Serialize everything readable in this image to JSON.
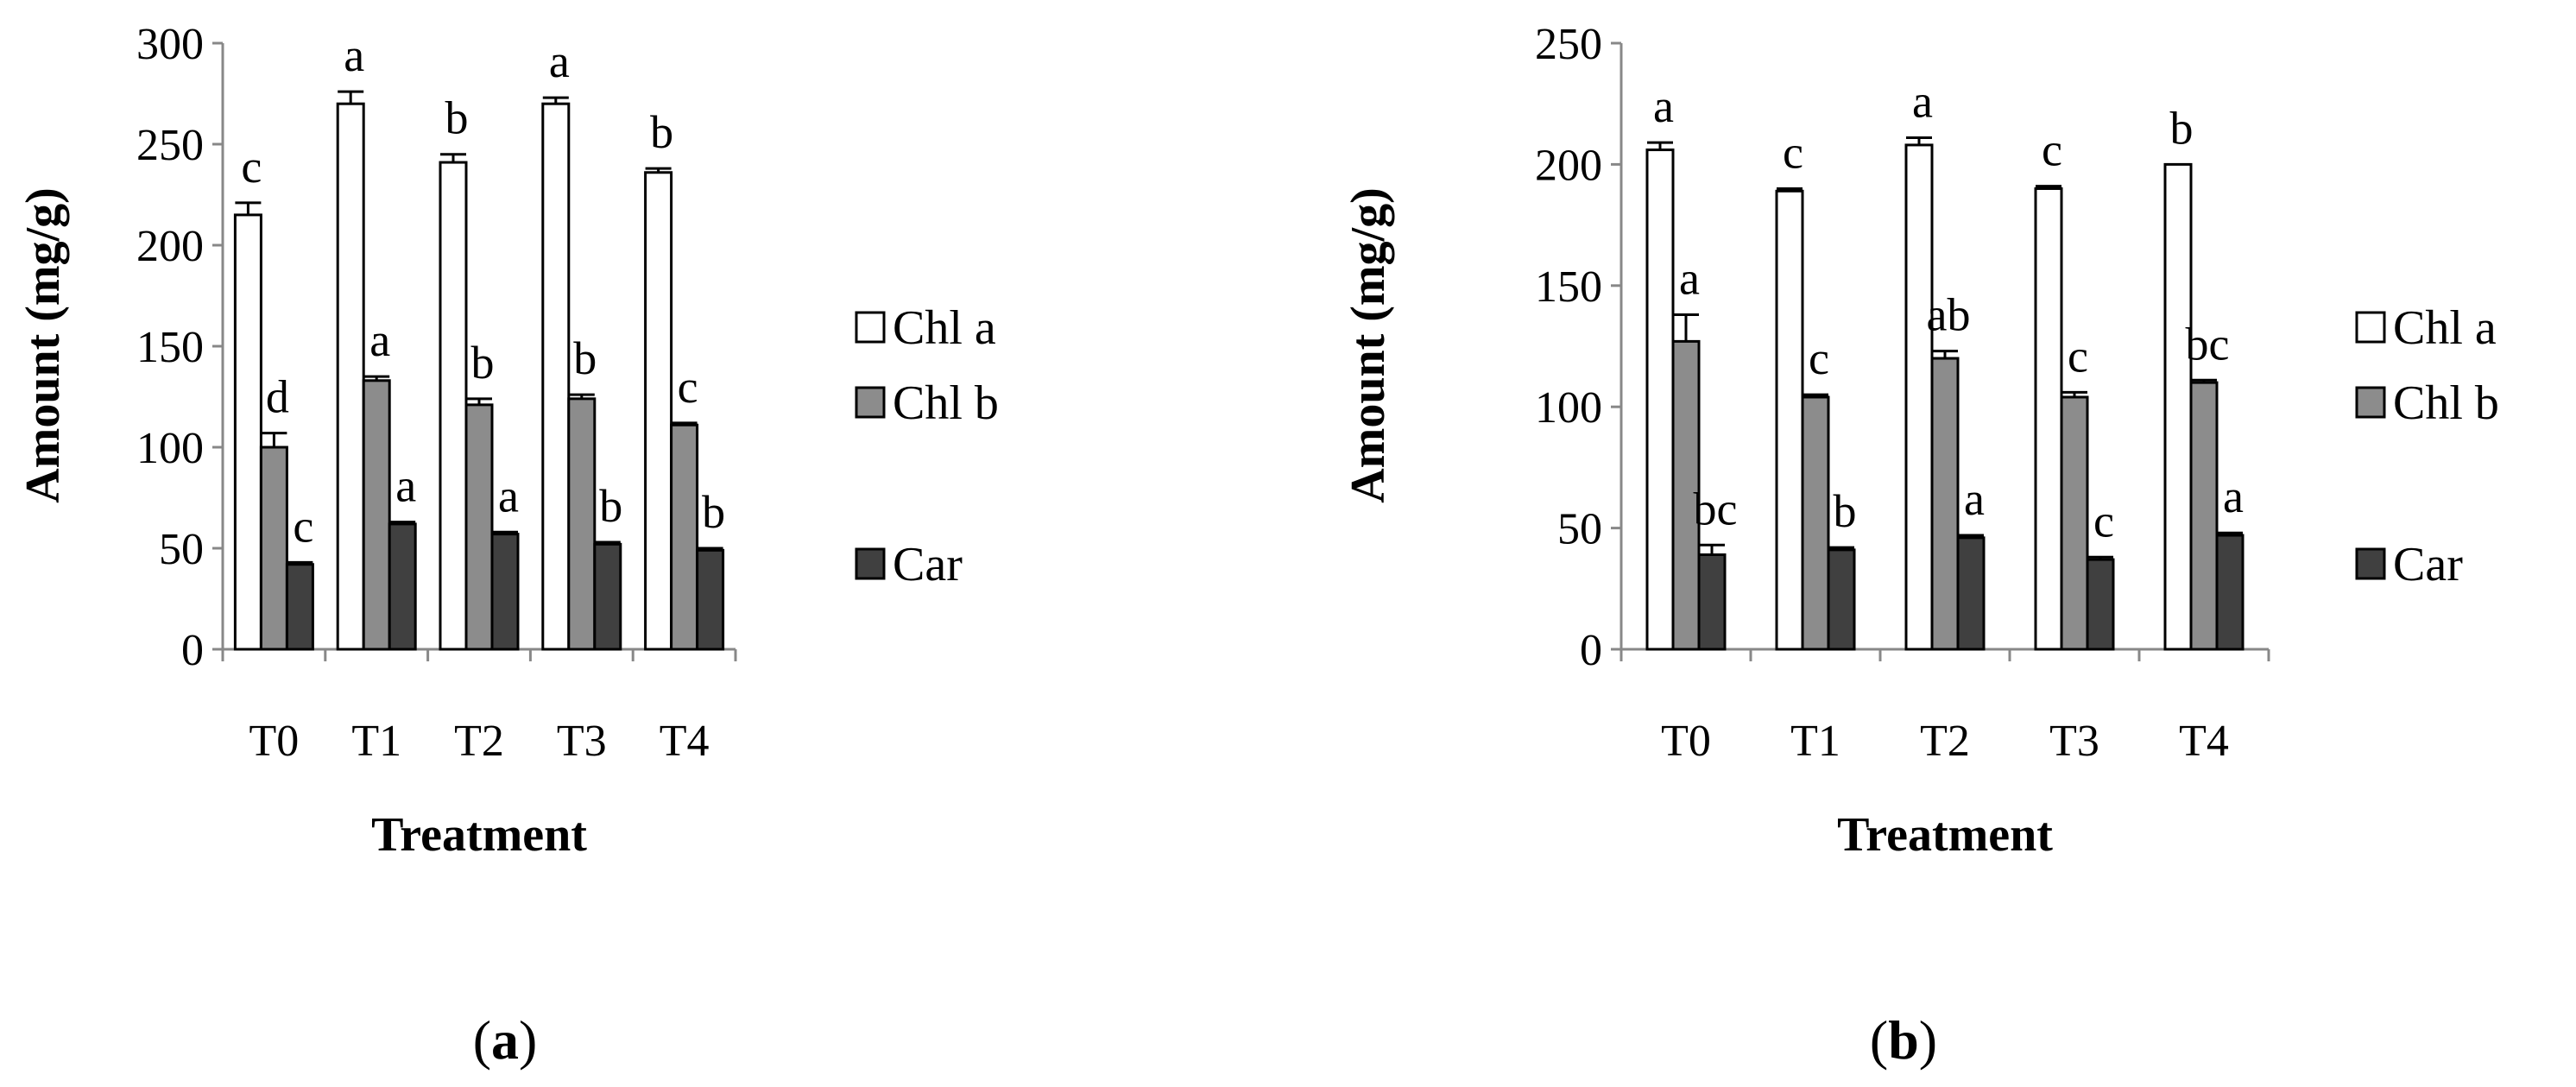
{
  "figure": {
    "panels": [
      {
        "label_open": "(",
        "label_letter": "a",
        "label_close": ")"
      },
      {
        "label_open": "(",
        "label_letter": "b",
        "label_close": ")"
      }
    ]
  },
  "chart_data": [
    {
      "type": "bar",
      "title": "",
      "xlabel": "Treatment",
      "ylabel": "Amount (mg/g)",
      "categories": [
        "T0",
        "T1",
        "T2",
        "T3",
        "T4"
      ],
      "ylim": [
        0,
        300
      ],
      "yticks": [
        0,
        50,
        100,
        150,
        200,
        250,
        300
      ],
      "grid": false,
      "legend_position": "right",
      "series": [
        {
          "name": "Chl a",
          "color": "#ffffff",
          "values": [
            215,
            270,
            241,
            270,
            236
          ],
          "errors": [
            6,
            6,
            4,
            3,
            2
          ],
          "labels": [
            "c",
            "a",
            "b",
            "a",
            "b"
          ]
        },
        {
          "name": "Chl b",
          "color": "#8c8c8c",
          "values": [
            100,
            133,
            121,
            124,
            111
          ],
          "errors": [
            7,
            2,
            3,
            2,
            1
          ],
          "labels": [
            "d",
            "a",
            "b",
            "b",
            "c"
          ]
        },
        {
          "name": "Car",
          "color": "#404040",
          "values": [
            42,
            62,
            57,
            52,
            49
          ],
          "errors": [
            1,
            1,
            1,
            1,
            1
          ],
          "labels": [
            "c",
            "a",
            "a",
            "b",
            "b"
          ]
        }
      ]
    },
    {
      "type": "bar",
      "title": "",
      "xlabel": "Treatment",
      "ylabel": "Amount (mg/g)",
      "categories": [
        "T0",
        "T1",
        "T2",
        "T3",
        "T4"
      ],
      "ylim": [
        0,
        250
      ],
      "yticks": [
        0,
        50,
        100,
        150,
        200,
        250
      ],
      "grid": false,
      "legend_position": "right",
      "series": [
        {
          "name": "Chl a",
          "color": "#ffffff",
          "values": [
            206,
            189,
            208,
            190,
            200
          ],
          "errors": [
            3,
            1,
            3,
            1,
            0
          ],
          "labels": [
            "a",
            "c",
            "a",
            "c",
            "b"
          ]
        },
        {
          "name": "Chl b",
          "color": "#8c8c8c",
          "values": [
            127,
            104,
            120,
            104,
            110
          ],
          "errors": [
            11,
            1,
            3,
            2,
            1
          ],
          "labels": [
            "a",
            "c",
            "ab",
            "c",
            "bc"
          ]
        },
        {
          "name": "Car",
          "color": "#404040",
          "values": [
            39,
            41,
            46,
            37,
            47
          ],
          "errors": [
            4,
            1,
            1,
            1,
            1
          ],
          "labels": [
            "bc",
            "b",
            "a",
            "c",
            "a"
          ]
        }
      ]
    }
  ]
}
